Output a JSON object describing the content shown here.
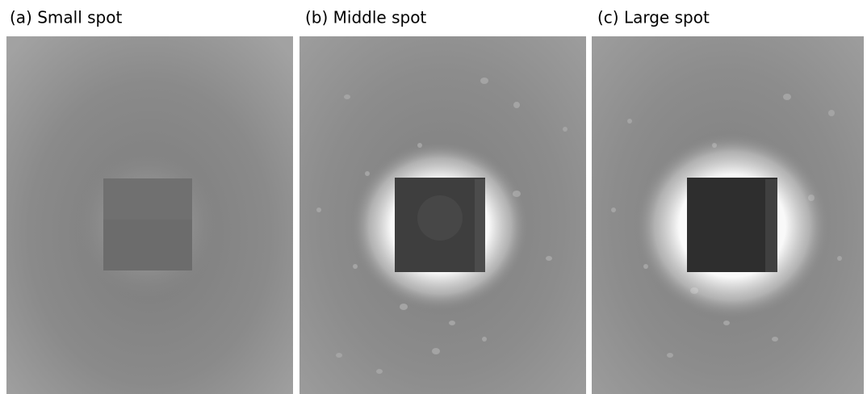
{
  "panels": [
    {
      "label": "(a) Small spot"
    },
    {
      "label": "(b) Middle spot"
    },
    {
      "label": "(c) Large spot"
    }
  ]
}
